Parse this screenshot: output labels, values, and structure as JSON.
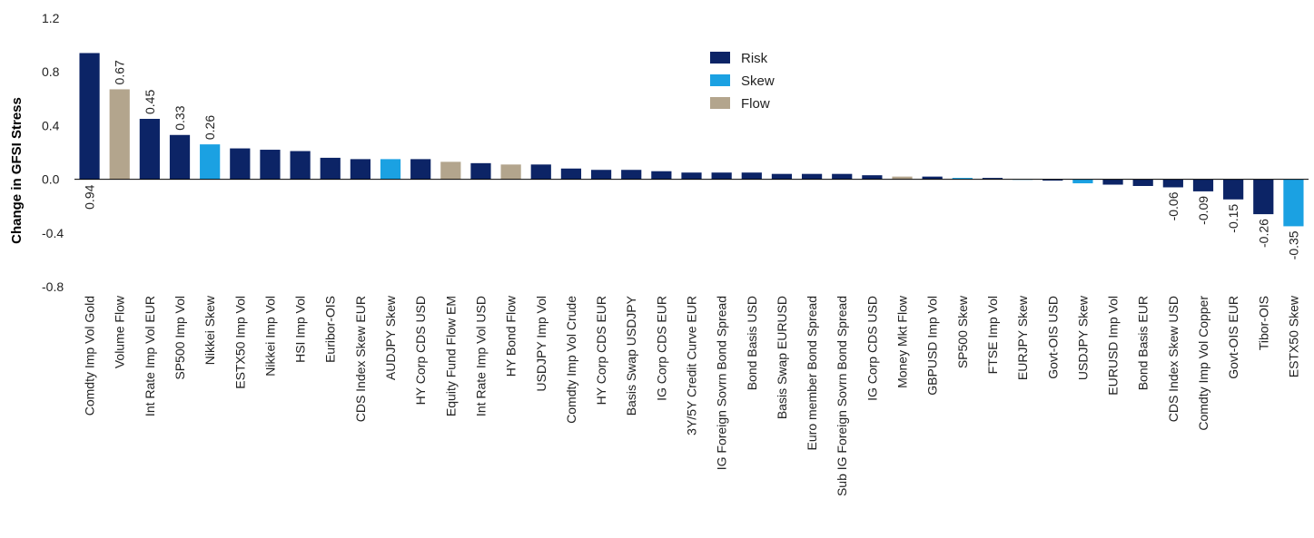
{
  "chart_data": {
    "type": "bar",
    "ylabel": "Change in GFSI Stress",
    "ylim": [
      -0.8,
      1.2
    ],
    "yticks": [
      -0.8,
      -0.4,
      0.0,
      0.4,
      0.8,
      1.2
    ],
    "ytick_labels": [
      "-0.8",
      "-0.4",
      "0.0",
      "0.4",
      "0.8",
      "1.2"
    ],
    "legend": [
      {
        "name": "Risk",
        "color": "#0c2466"
      },
      {
        "name": "Skew",
        "color": "#1ba1e2"
      },
      {
        "name": "Flow",
        "color": "#b3a58d"
      }
    ],
    "legend_position": "top-center",
    "categories": [
      "Comdty Imp Vol Gold",
      "Volume Flow",
      "Int Rate Imp Vol EUR",
      "SP500 Imp Vol",
      "Nikkei Skew",
      "ESTX50 Imp Vol",
      "Nikkei Imp Vol",
      "HSI Imp Vol",
      "Euribor-OIS",
      "CDS Index Skew EUR",
      "AUDJPY Skew",
      "HY Corp CDS USD",
      "Equity Fund Flow EM",
      "Int Rate Imp Vol USD",
      "HY Bond Flow",
      "USDJPY Imp Vol",
      "Comdty Imp Vol Crude",
      "HY Corp CDS EUR",
      "Basis Swap USDJPY",
      "IG Corp CDS EUR",
      "3Y/5Y Credit Curve EUR",
      "IG Foreign Sovrn Bond Spread",
      "Bond Basis USD",
      "Basis Swap EURUSD",
      "Euro member Bond Spread",
      "Sub IG Foreign Sovrn Bond Spread",
      "IG Corp CDS USD",
      "Money Mkt Flow",
      "GBPUSD Imp Vol",
      "SP500 Skew",
      "FTSE Imp Vol",
      "EURJPY Skew",
      "Govt-OIS USD",
      "USDJPY Skew",
      "EURUSD Imp Vol",
      "Bond Basis EUR",
      "CDS Index Skew USD",
      "Comdty Imp Vol Copper",
      "Govt-OIS EUR",
      "Tibor-OIS",
      "ESTX50 Skew"
    ],
    "values": [
      0.94,
      0.67,
      0.45,
      0.33,
      0.26,
      0.23,
      0.22,
      0.21,
      0.16,
      0.15,
      0.15,
      0.15,
      0.13,
      0.12,
      0.11,
      0.11,
      0.08,
      0.07,
      0.07,
      0.06,
      0.05,
      0.05,
      0.05,
      0.04,
      0.04,
      0.04,
      0.03,
      0.02,
      0.02,
      0.01,
      0.01,
      0.0,
      -0.01,
      -0.03,
      -0.04,
      -0.05,
      -0.06,
      -0.09,
      -0.15,
      -0.26,
      -0.35
    ],
    "groups": [
      "Risk",
      "Flow",
      "Risk",
      "Risk",
      "Skew",
      "Risk",
      "Risk",
      "Risk",
      "Risk",
      "Risk",
      "Skew",
      "Risk",
      "Flow",
      "Risk",
      "Flow",
      "Risk",
      "Risk",
      "Risk",
      "Risk",
      "Risk",
      "Risk",
      "Risk",
      "Risk",
      "Risk",
      "Risk",
      "Risk",
      "Risk",
      "Flow",
      "Risk",
      "Skew",
      "Risk",
      "Skew",
      "Risk",
      "Skew",
      "Risk",
      "Risk",
      "Risk",
      "Risk",
      "Risk",
      "Risk",
      "Skew"
    ],
    "data_labels": [
      "0.94",
      "0.67",
      "0.45",
      "0.33",
      "0.26",
      null,
      null,
      null,
      null,
      null,
      null,
      null,
      null,
      null,
      null,
      null,
      null,
      null,
      null,
      null,
      null,
      null,
      null,
      null,
      null,
      null,
      null,
      null,
      null,
      null,
      null,
      null,
      null,
      null,
      null,
      null,
      "-0.06",
      "-0.09",
      "-0.15",
      "-0.26",
      "-0.35"
    ]
  }
}
